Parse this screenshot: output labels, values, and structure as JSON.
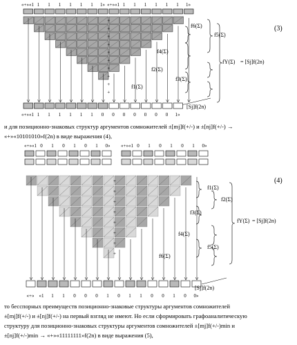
{
  "figure1": {
    "eq_number": "(3)",
    "top_bits": [
      "«+»«1",
      "1",
      "1",
      "1",
      "1",
      "1",
      "1",
      "1»",
      "«+»«1",
      "1",
      "1",
      "1",
      "1",
      "1",
      "1",
      "1»"
    ],
    "bottom_bits": [
      "«+»«1",
      "1",
      "1",
      "1",
      "1",
      "1",
      "1",
      "0",
      "0",
      "0",
      "0",
      "0",
      "0",
      "0",
      "1»"
    ],
    "labels": {
      "f6": "f6(Σ)",
      "f5": "f5(Σ)",
      "f4": "f4(Σ)",
      "f3": "f3(Σ)",
      "f2": "f2(Σ)",
      "f1": "f1(Σ)",
      "fy": "fY(Σ)",
      "eq": "= [Sj]f(2n)",
      "out": "[Sj]f(2n)"
    },
    "colors": {
      "cell_dark": "#a8a8a8",
      "cell_light": "#d9d9d9",
      "bar": "#b9b9b9",
      "line": "#000000"
    }
  },
  "text1": {
    "line1": "и для позиционно-знаковых структур аргументов сомножителей ±[mj]f(+/-) и ±[nj]f(+/-) →",
    "line2": "«+»«10101010»f(2n) в виде выражения (4),"
  },
  "figure2": {
    "eq_number": "(4)",
    "top_bits_left": [
      "«+»«1",
      "0",
      "1",
      "0",
      "1",
      "0",
      "1",
      "0»"
    ],
    "top_bits_right": [
      "«+»«1",
      "0",
      "1",
      "0",
      "1",
      "0",
      "1",
      "0»"
    ],
    "bottom_bits": [
      "«+»",
      "«1",
      "1",
      "1",
      "0",
      "0",
      "0",
      "1",
      "0",
      "1",
      "1",
      "0",
      "0",
      "1",
      "0",
      "0»"
    ],
    "labels": {
      "f1": "f1(Σ)",
      "f2": "f2(Σ)",
      "f3": "f3(Σ)",
      "f4": "f4(Σ)",
      "f5": "f5(Σ)",
      "f6": "f6(Σ)",
      "fy": "fY(Σ)",
      "eq": "= [Sj]f(2n)",
      "out": "[Sj]f(2n)"
    }
  },
  "text2": {
    "line1": "то бесспорных преимуществ позиционно-знаковые структуры аргументов сомножителей",
    "line2": "±[mj]f(+/-) и ±[nj]f(+/-) на первый взгляд не имеют. Но если сформировать графоаналитическую",
    "line3": "структуру для позиционно-знаковых структуры аргументов сомножителей ±[mj]f(+/-)min и",
    "line4": "±[nj]f(+/-)min → «+»«11111111»f(2n) в виде выражения (5),"
  }
}
